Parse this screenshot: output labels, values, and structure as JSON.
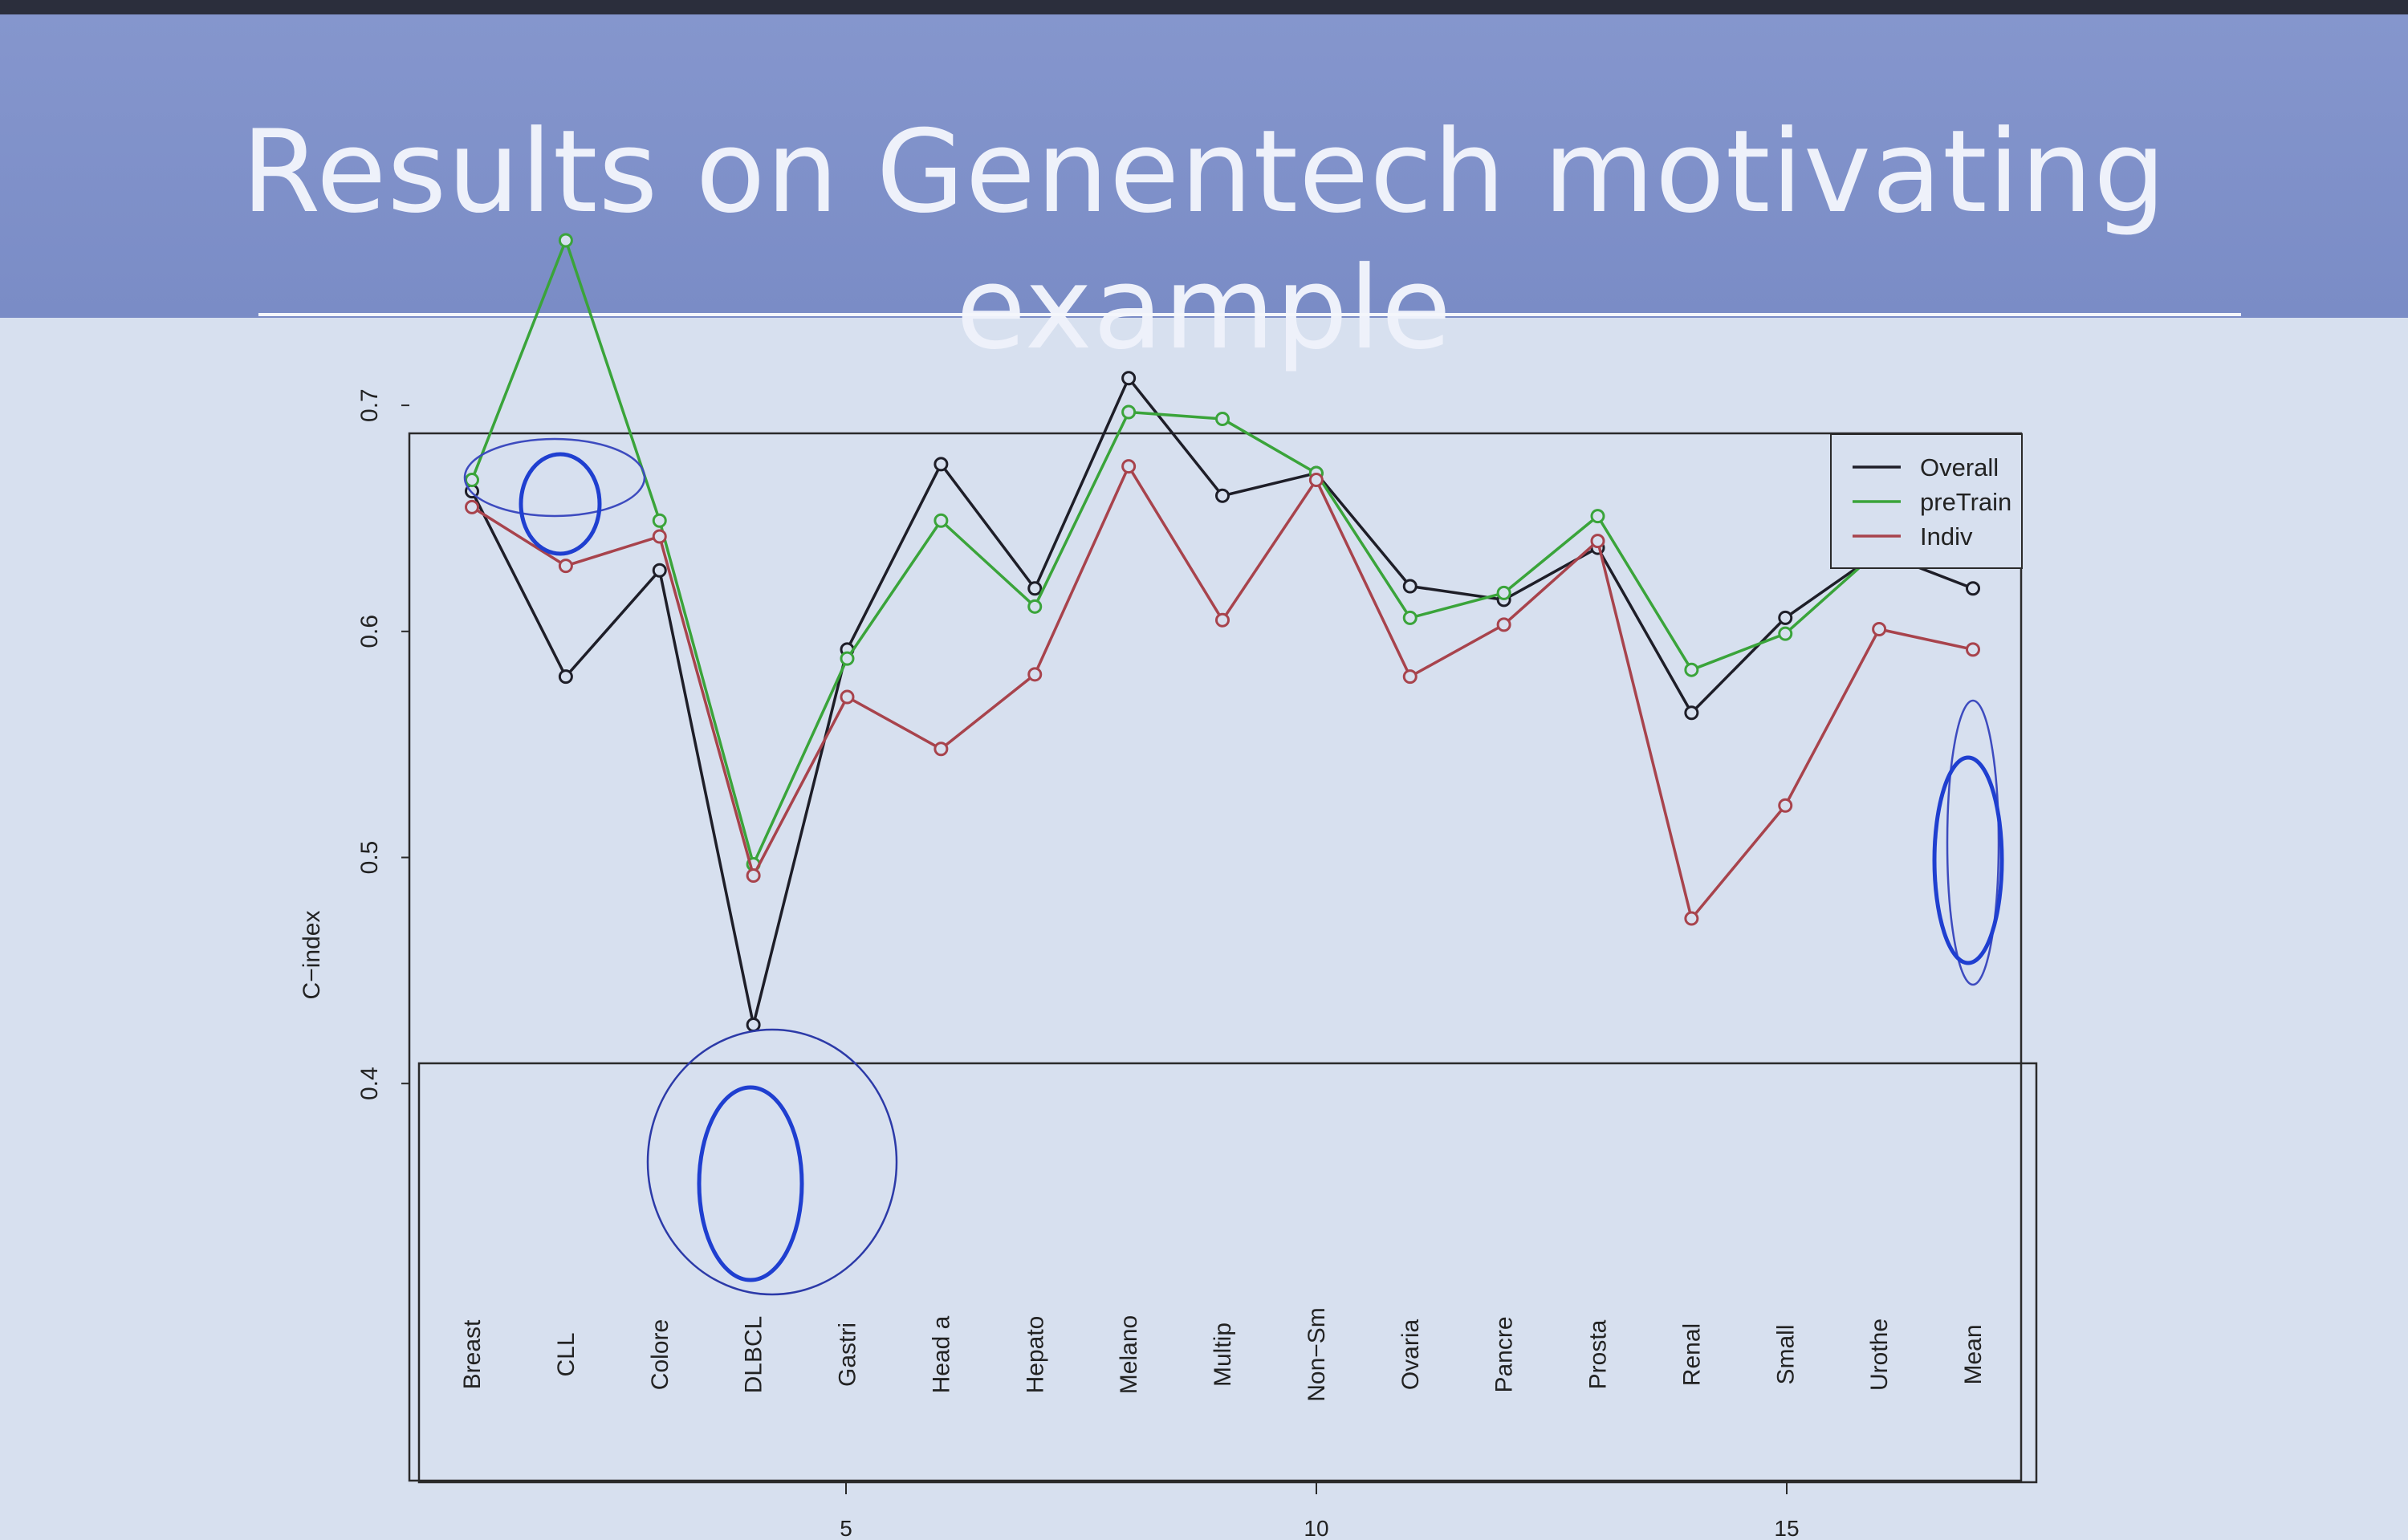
{
  "slide": {
    "title": "Results on Genentech motivating example"
  },
  "chart_data": {
    "type": "line",
    "ylabel": "C−index",
    "ylim": [
      0.4,
      0.8
    ],
    "yticks": [
      0.4,
      0.5,
      0.6,
      0.7
    ],
    "xticks_bottom": [
      5,
      10,
      15
    ],
    "categories": [
      "Breast",
      "CLL",
      "Colore",
      "DLBCL",
      "Gastri",
      "Head a",
      "Hepato",
      "Melano",
      "Multip",
      "Non−Sm",
      "Ovaria",
      "Pancre",
      "Prosta",
      "Renal",
      "Small",
      "Urothe",
      "Mean"
    ],
    "legend_position": "top-right",
    "series": [
      {
        "name": "Overall",
        "color": "#1e1e28",
        "values": [
          0.662,
          0.58,
          0.627,
          0.426,
          0.592,
          0.674,
          0.619,
          0.712,
          0.66,
          0.67,
          0.62,
          0.614,
          0.637,
          0.564,
          0.606,
          0.635,
          0.619
        ]
      },
      {
        "name": "preTrain",
        "color": "#3aa43a",
        "values": [
          0.667,
          0.773,
          0.649,
          0.497,
          0.588,
          0.649,
          0.611,
          0.697,
          0.694,
          0.67,
          0.606,
          0.617,
          0.651,
          0.583,
          0.599,
          0.636,
          0.637
        ]
      },
      {
        "name": "Indiv",
        "color": "#a8434c",
        "values": [
          0.655,
          0.629,
          0.642,
          0.492,
          0.571,
          0.548,
          0.581,
          0.673,
          0.605,
          0.667,
          0.58,
          0.603,
          0.64,
          0.473,
          0.523,
          0.601,
          0.592
        ]
      }
    ],
    "annotations": [
      {
        "shape": "ellipse",
        "category": "CLL",
        "color": "#3d4bbf"
      },
      {
        "shape": "ellipse",
        "category": "CLL",
        "color": "#1f3fd0"
      },
      {
        "shape": "circle",
        "category": "DLBCL",
        "color": "#2c3aa8"
      },
      {
        "shape": "ellipse",
        "category": "DLBCL",
        "color": "#1f3fd0"
      },
      {
        "shape": "ellipse",
        "category": "Mean",
        "color": "#3d4bbf"
      },
      {
        "shape": "ellipse",
        "category": "Mean",
        "color": "#1f3fd0"
      }
    ]
  }
}
